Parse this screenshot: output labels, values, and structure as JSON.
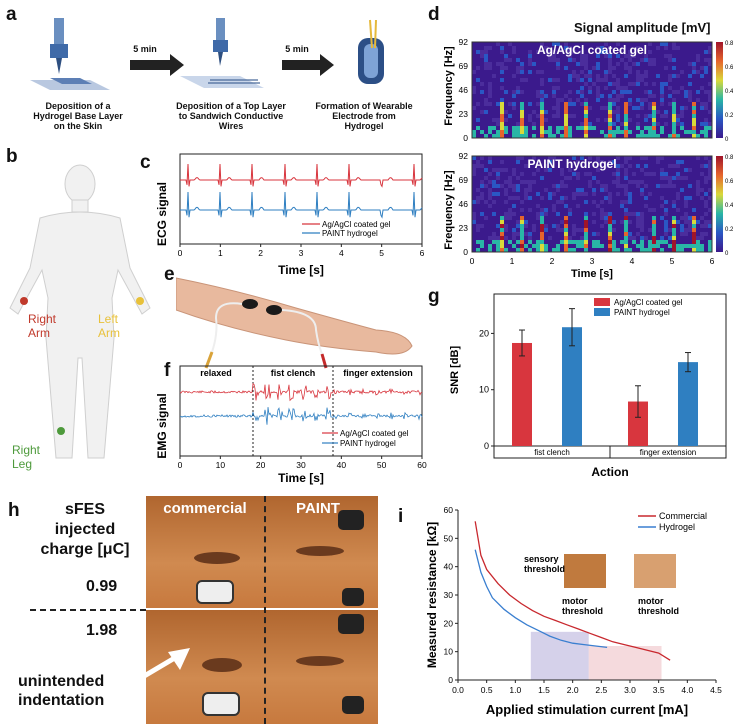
{
  "panels": {
    "a": "a",
    "b": "b",
    "c": "c",
    "d": "d",
    "e": "e",
    "f": "f",
    "g": "g",
    "h": "h",
    "i": "i"
  },
  "panel_a": {
    "steps": [
      "Deposition of a Hydrogel Base Layer on the Skin",
      "Deposition of a Top Layer to Sandwich Conductive Wires",
      "Formation of Wearable Electrode from Hydrogel"
    ],
    "arrows": [
      "5 min",
      "5 min"
    ]
  },
  "panel_b": {
    "labels": {
      "right_arm": "Right\nArm",
      "left_arm": "Left\nArm",
      "right_leg": "Right\nLeg"
    },
    "colors": {
      "right_arm": "#c0392b",
      "left_arm": "#e8c13a",
      "right_leg": "#4e9a3c"
    }
  },
  "panel_c": {
    "ylabel": "ECG signal",
    "xlabel": "Time [s]",
    "xticks": [
      "0",
      "1",
      "2",
      "3",
      "4",
      "5",
      "6"
    ],
    "legend": [
      "Ag/AgCl coated gel",
      "PAINT hydrogel"
    ]
  },
  "panel_d": {
    "title": "Signal amplitude [mV]",
    "ylabel": "Frequency [Hz]",
    "xlabel": "Time [s]",
    "yticks": [
      "92",
      "69",
      "46",
      "23",
      "0"
    ],
    "xticks": [
      "0",
      "1",
      "2",
      "3",
      "4",
      "5",
      "6"
    ],
    "top_label": "Ag/AgCl coated gel",
    "bottom_label": "PAINT hydrogel",
    "cbar_ticks": [
      "0.8",
      "0.6",
      "0.4",
      "0.2",
      "0"
    ]
  },
  "panel_e": {},
  "panel_f": {
    "ylabel": "EMG signal",
    "xlabel": "Time [s]",
    "xticks": [
      "0",
      "10",
      "20",
      "30",
      "40",
      "50",
      "60"
    ],
    "segments": [
      "relaxed",
      "fist clench",
      "finger extension"
    ],
    "legend": [
      "Ag/AgCl coated gel",
      "PAINT hydrogel"
    ]
  },
  "panel_h": {
    "header": "sFES\ninjected\ncharge [μC]",
    "rows": [
      "0.99",
      "1.98"
    ],
    "columns": [
      "commercial",
      "PAINT"
    ],
    "annotation": "unintended\nindentation"
  },
  "panel_i": {
    "annotations": {
      "sensory": "sensory\nthreshold",
      "motor1": "motor\nthreshold",
      "motor2": "motor\nthreshold"
    }
  },
  "chart_data": [
    {
      "type": "bar",
      "panel": "g",
      "categories": [
        "fist clench",
        "finger extension"
      ],
      "series": [
        {
          "name": "Ag/AgCl coated gel",
          "values": [
            18.3,
            7.9
          ],
          "errors": [
            2.3,
            2.8
          ],
          "color": "#d8363e"
        },
        {
          "name": "PAINT hydrogel",
          "values": [
            21.1,
            14.9
          ],
          "errors": [
            3.3,
            1.7
          ],
          "color": "#2f7fc1"
        }
      ],
      "xlabel": "Action",
      "ylabel": "SNR [dB]",
      "ylim": [
        0,
        27
      ],
      "yticks": [
        0,
        10,
        20
      ]
    },
    {
      "type": "line",
      "panel": "i",
      "xlabel": "Applied stimulation current [mA]",
      "ylabel": "Measured resistance [kΩ]",
      "xlim": [
        0,
        4.5
      ],
      "ylim": [
        0,
        60
      ],
      "xticks": [
        0.0,
        0.5,
        1.0,
        1.5,
        2.0,
        2.5,
        3.0,
        3.5,
        4.0,
        4.5
      ],
      "yticks": [
        0,
        10,
        20,
        30,
        40,
        50,
        60
      ],
      "series": [
        {
          "name": "Commercial",
          "color": "#c8282e",
          "x": [
            0.3,
            0.4,
            0.5,
            0.7,
            0.9,
            1.1,
            1.3,
            1.5,
            1.7,
            1.9,
            2.1,
            2.3,
            2.5,
            2.7,
            2.9,
            3.1,
            3.3,
            3.5,
            3.7
          ],
          "y": [
            56,
            44,
            39,
            34,
            30,
            27,
            24.5,
            22.5,
            21,
            19.5,
            18,
            16.5,
            15,
            13.5,
            12.5,
            11.5,
            10.5,
            9.5,
            7
          ]
        },
        {
          "name": "Hydrogel",
          "color": "#3a7fd0",
          "x": [
            0.3,
            0.4,
            0.5,
            0.6,
            0.8,
            1.0,
            1.2,
            1.4,
            1.6,
            1.8,
            2.0,
            2.2,
            2.4,
            2.6
          ],
          "y": [
            46,
            38,
            33,
            29,
            25,
            22,
            19.5,
            17.5,
            15.5,
            14,
            13,
            12.5,
            12,
            11.5
          ]
        }
      ],
      "shaded": [
        [
          1.27,
          2.28
        ],
        [
          2.28,
          3.55
        ]
      ]
    }
  ],
  "colors": {
    "red": "#d8363e",
    "blue": "#2f7fc1"
  }
}
